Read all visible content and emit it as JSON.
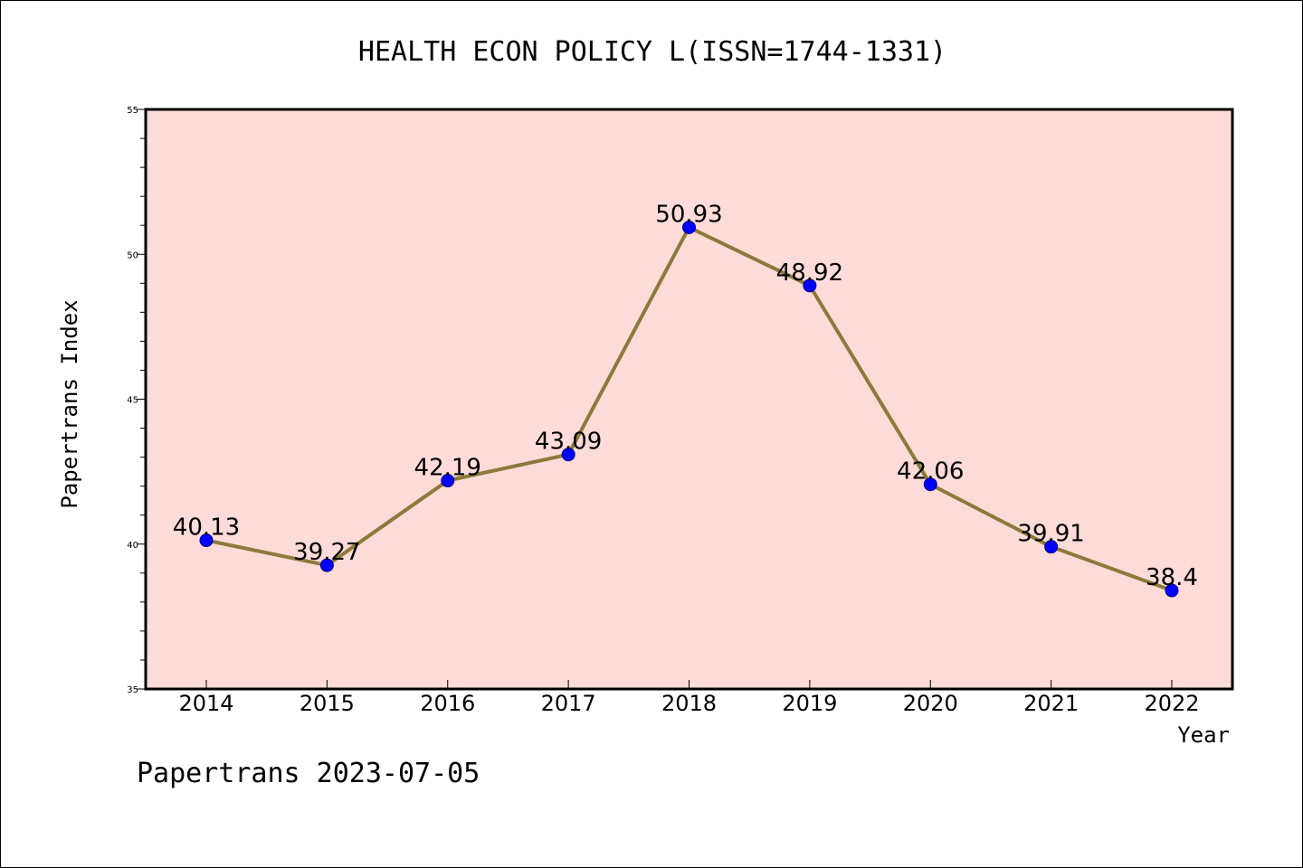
{
  "chart_data": {
    "type": "line",
    "title": "HEALTH ECON POLICY L(ISSN=1744-1331)",
    "xlabel": "Year",
    "ylabel": "Papertrans Index",
    "categories": [
      "2014",
      "2015",
      "2016",
      "2017",
      "2018",
      "2019",
      "2020",
      "2021",
      "2022"
    ],
    "series": [
      {
        "values": [
          40.13,
          39.27,
          42.19,
          43.09,
          50.93,
          48.92,
          42.06,
          39.91,
          38.4
        ],
        "labels": [
          "40.13",
          "39.27",
          "42.19",
          "43.09",
          "50.93",
          "48.92",
          "42.06",
          "39.91",
          "38.4"
        ]
      }
    ],
    "ylim": [
      35,
      55
    ],
    "yticks": [
      35,
      40,
      45,
      50,
      55
    ],
    "ytick_labels": [
      "35",
      "40",
      "45",
      "50",
      "55"
    ],
    "grid": false,
    "colors": {
      "plot_background": "#fddbd8",
      "line": "#8b7a3a",
      "marker": "#0000ff",
      "marker_edge": "#00008b"
    },
    "footer": "Papertrans 2023-07-05"
  }
}
